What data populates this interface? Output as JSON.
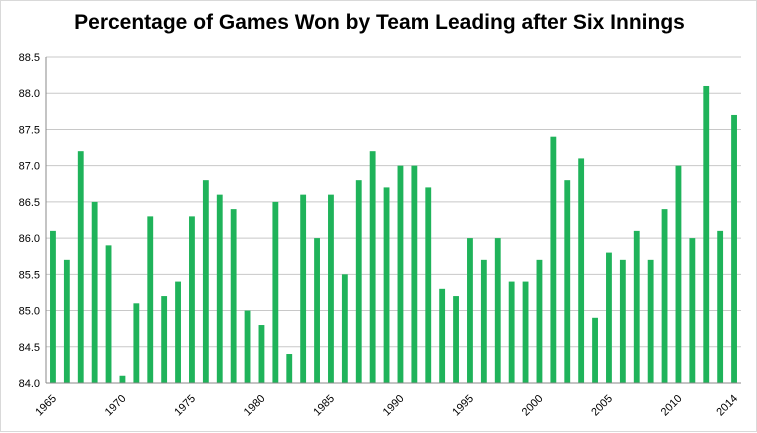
{
  "chart_data": {
    "type": "bar",
    "title": "Percentage of Games Won by Team Leading after Six Innings",
    "xlabel": "",
    "ylabel": "",
    "ylim": [
      84.0,
      88.5
    ],
    "yticks": [
      "84.0",
      "84.5",
      "85.0",
      "85.5",
      "86.0",
      "86.5",
      "87.0",
      "87.5",
      "88.0",
      "88.5"
    ],
    "xtick_labels": [
      "1965",
      "1970",
      "1975",
      "1980",
      "1985",
      "1990",
      "1995",
      "2000",
      "2005",
      "2010",
      "2014"
    ],
    "categories": [
      1965,
      1966,
      1967,
      1968,
      1969,
      1970,
      1971,
      1972,
      1973,
      1974,
      1975,
      1976,
      1977,
      1978,
      1979,
      1980,
      1981,
      1982,
      1983,
      1984,
      1985,
      1986,
      1987,
      1988,
      1989,
      1990,
      1991,
      1992,
      1993,
      1994,
      1995,
      1996,
      1997,
      1998,
      1999,
      2000,
      2001,
      2002,
      2003,
      2004,
      2005,
      2006,
      2007,
      2008,
      2009,
      2010,
      2011,
      2012,
      2013,
      2014
    ],
    "values": [
      86.1,
      85.7,
      87.2,
      86.5,
      85.9,
      84.1,
      85.1,
      86.3,
      85.2,
      85.4,
      86.3,
      86.8,
      86.6,
      86.4,
      85.0,
      84.8,
      86.5,
      84.4,
      86.6,
      86.0,
      86.6,
      85.5,
      86.8,
      87.2,
      86.7,
      87.0,
      87.0,
      86.7,
      85.3,
      85.2,
      86.0,
      85.7,
      86.0,
      85.4,
      85.4,
      85.7,
      87.4,
      86.8,
      87.1,
      84.9,
      85.8,
      85.7,
      86.1,
      85.7,
      86.4,
      87.0,
      86.0,
      88.1,
      86.1,
      87.7
    ],
    "bar_color": "#1fb35a",
    "grid": true
  }
}
